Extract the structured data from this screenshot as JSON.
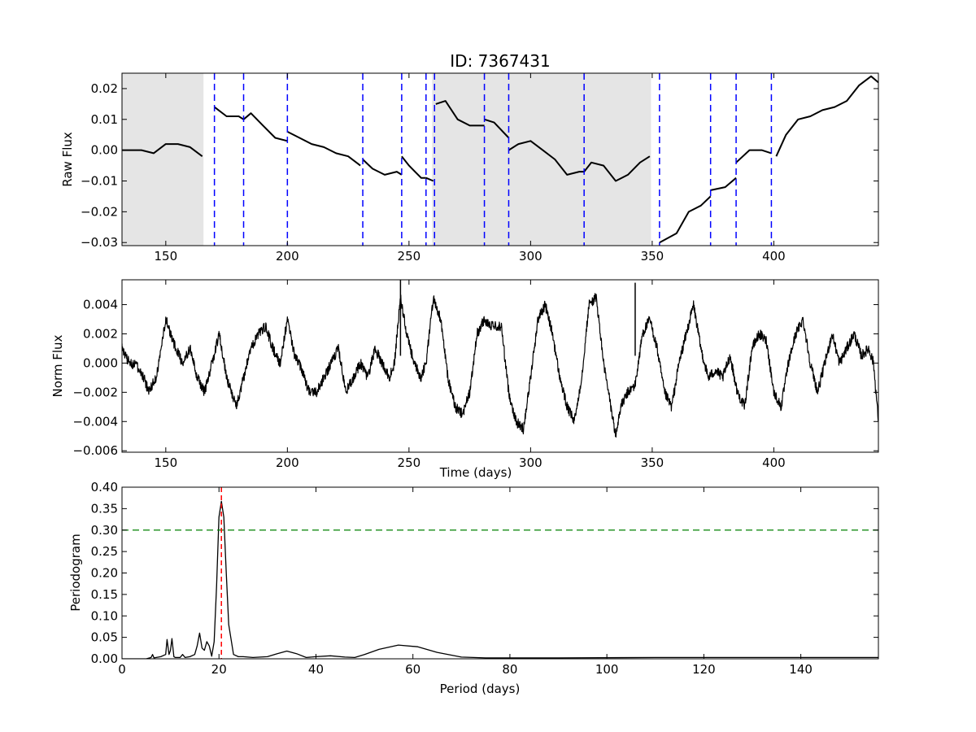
{
  "figure_title": "ID: 7367431",
  "colors": {
    "series": "#000000",
    "gap_marker": "#0000ff",
    "peak_marker": "#ff0000",
    "threshold": "#008000",
    "shade": "#e5e5e5"
  },
  "chart_data": [
    {
      "type": "line",
      "title": "ID: 7367431",
      "xlabel": "",
      "ylabel": "Raw Flux",
      "xlim": [
        132,
        443
      ],
      "ylim": [
        -0.031,
        0.025
      ],
      "xticks": [
        150,
        200,
        250,
        300,
        350,
        400
      ],
      "yticks": [
        -0.03,
        -0.02,
        -0.01,
        0.0,
        0.01,
        0.02
      ],
      "ytick_labels": [
        "−0.03",
        "−0.02",
        "−0.01",
        "0.00",
        "0.01",
        "0.02"
      ],
      "grid": false,
      "shaded_ranges": [
        [
          132,
          165.5
        ],
        [
          259.5,
          349.5
        ]
      ],
      "gap_markers": [
        170,
        182,
        200,
        231,
        247,
        257,
        260.5,
        281,
        291,
        322,
        353,
        374,
        384.5,
        399
      ],
      "series": [
        {
          "segment": 1,
          "x": [
            132,
            140,
            145,
            150,
            155,
            160,
            165
          ],
          "y": [
            0.0,
            0.0,
            -0.001,
            0.002,
            0.002,
            0.001,
            -0.002
          ]
        },
        {
          "segment": 2,
          "x": [
            170,
            175,
            180,
            182,
            185,
            190,
            195,
            200
          ],
          "y": [
            0.014,
            0.011,
            0.011,
            0.01,
            0.012,
            0.008,
            0.004,
            0.003
          ]
        },
        {
          "segment": 3,
          "x": [
            200,
            205,
            210,
            215,
            220,
            225,
            230
          ],
          "y": [
            0.006,
            0.004,
            0.002,
            0.001,
            -0.001,
            -0.002,
            -0.005
          ]
        },
        {
          "segment": 4,
          "x": [
            231,
            235,
            240,
            245,
            247
          ],
          "y": [
            -0.003,
            -0.006,
            -0.008,
            -0.007,
            -0.008
          ]
        },
        {
          "segment": 5,
          "x": [
            247,
            250,
            255,
            257
          ],
          "y": [
            -0.002,
            -0.005,
            -0.009,
            -0.009
          ]
        },
        {
          "segment": 6,
          "x": [
            257,
            260
          ],
          "y": [
            -0.009,
            -0.01
          ]
        },
        {
          "segment": 7,
          "x": [
            261,
            265,
            270,
            275,
            281
          ],
          "y": [
            0.015,
            0.016,
            0.01,
            0.008,
            0.008
          ]
        },
        {
          "segment": 8,
          "x": [
            281,
            285,
            291
          ],
          "y": [
            0.01,
            0.009,
            0.004
          ]
        },
        {
          "segment": 9,
          "x": [
            291,
            295,
            300,
            305,
            310,
            315,
            320,
            322
          ],
          "y": [
            0.0,
            0.002,
            0.003,
            0.0,
            -0.003,
            -0.008,
            -0.007,
            -0.007
          ]
        },
        {
          "segment": 10,
          "x": [
            322,
            325,
            330,
            335,
            340,
            345,
            349
          ],
          "y": [
            -0.007,
            -0.004,
            -0.005,
            -0.01,
            -0.008,
            -0.004,
            -0.002
          ]
        },
        {
          "segment": 11,
          "x": [
            353,
            360,
            365,
            370,
            374
          ],
          "y": [
            -0.03,
            -0.027,
            -0.02,
            -0.018,
            -0.015
          ]
        },
        {
          "segment": 12,
          "x": [
            374,
            380,
            384.5
          ],
          "y": [
            -0.013,
            -0.012,
            -0.009
          ]
        },
        {
          "segment": 13,
          "x": [
            384.5,
            390,
            395,
            399
          ],
          "y": [
            -0.004,
            0.0,
            0.0,
            -0.001
          ]
        },
        {
          "segment": 14,
          "x": [
            401,
            405,
            410,
            415,
            420,
            425,
            430,
            435,
            440,
            443
          ],
          "y": [
            -0.002,
            0.005,
            0.01,
            0.011,
            0.013,
            0.014,
            0.016,
            0.021,
            0.024,
            0.022
          ]
        }
      ]
    },
    {
      "type": "line",
      "title": "",
      "xlabel": "Time (days)",
      "ylabel": "Norm Flux",
      "xlim": [
        132,
        443
      ],
      "ylim": [
        -0.0061,
        0.0057
      ],
      "xticks": [
        150,
        200,
        250,
        300,
        350,
        400
      ],
      "yticks": [
        -0.006,
        -0.004,
        -0.002,
        0.0,
        0.002,
        0.004
      ],
      "ytick_labels": [
        "−0.006",
        "−0.004",
        "−0.002",
        "0.000",
        "0.002",
        "0.004"
      ],
      "grid": false,
      "noise_amplitude": 0.00035,
      "spikes": [
        [
          246.5,
          0.0057
        ],
        [
          343,
          0.0055
        ]
      ],
      "series": [
        {
          "x": [
            132,
            135,
            138,
            141,
            143,
            146,
            150,
            154,
            157,
            160,
            163,
            166,
            169,
            172,
            175,
            179,
            182,
            185,
            188,
            191,
            194,
            197,
            200,
            203,
            206,
            209,
            212,
            215,
            218,
            221,
            224,
            227,
            230,
            233,
            236,
            239,
            242,
            244,
            246.5,
            249,
            252,
            255,
            257,
            260,
            263,
            266,
            269,
            272,
            275,
            278,
            281,
            284,
            288,
            291,
            294,
            297,
            300,
            303,
            306,
            309,
            312,
            315,
            318,
            321,
            324,
            327,
            330,
            333,
            335,
            337,
            340,
            343,
            346,
            349,
            352,
            355,
            358,
            361,
            364,
            367,
            370,
            373,
            376,
            379,
            382,
            385,
            388,
            391,
            394,
            397,
            400,
            403,
            406,
            409,
            412,
            415,
            418,
            421,
            424,
            427,
            430,
            433,
            436,
            439,
            441,
            443
          ],
          "y": [
            0.001,
            0.0,
            -0.0002,
            -0.001,
            -0.002,
            -0.001,
            0.003,
            0.001,
            0.0,
            0.001,
            -0.001,
            -0.002,
            0.0,
            0.002,
            -0.001,
            -0.003,
            -0.001,
            0.001,
            0.002,
            0.0025,
            0.001,
            0.0,
            0.003,
            0.0005,
            -0.0005,
            -0.002,
            -0.002,
            -0.001,
            0.0,
            0.001,
            -0.002,
            -0.001,
            0.0,
            -0.001,
            0.001,
            0.0,
            -0.001,
            0.0,
            0.0045,
            0.002,
            0.0,
            -0.001,
            0.0,
            0.0045,
            0.003,
            -0.001,
            -0.003,
            -0.0035,
            -0.002,
            0.002,
            0.003,
            0.0025,
            0.0025,
            -0.002,
            -0.004,
            -0.0045,
            -0.001,
            0.003,
            0.004,
            0.002,
            -0.001,
            -0.003,
            -0.004,
            -0.001,
            0.004,
            0.0045,
            0.0,
            -0.003,
            -0.005,
            -0.003,
            -0.002,
            -0.0015,
            0.002,
            0.003,
            0.001,
            -0.002,
            -0.003,
            0.0,
            0.002,
            0.004,
            0.001,
            -0.001,
            -0.0005,
            -0.001,
            0.0005,
            -0.002,
            -0.003,
            0.001,
            0.002,
            0.0015,
            -0.002,
            -0.003,
            0.0,
            0.002,
            0.003,
            0.0,
            -0.002,
            0.0,
            0.002,
            0.0,
            0.001,
            0.002,
            0.0005,
            0.001,
            0.0,
            -0.004
          ]
        }
      ]
    },
    {
      "type": "line",
      "title": "",
      "xlabel": "Period (days)",
      "ylabel": "Periodogram",
      "xlim": [
        0,
        156
      ],
      "ylim": [
        0.0,
        0.4
      ],
      "xticks": [
        0,
        20,
        40,
        60,
        80,
        100,
        120,
        140
      ],
      "yticks": [
        0.0,
        0.05,
        0.1,
        0.15,
        0.2,
        0.25,
        0.3,
        0.35,
        0.4
      ],
      "ytick_labels": [
        "0.00",
        "0.05",
        "0.10",
        "0.15",
        "0.20",
        "0.25",
        "0.30",
        "0.35",
        "0.40"
      ],
      "grid": false,
      "peak_period": 20.5,
      "threshold": 0.3,
      "series": [
        {
          "x": [
            0,
            5,
            6,
            6.3,
            6.6,
            8,
            9,
            9.3,
            9.7,
            10,
            10.3,
            10.7,
            11,
            12,
            12.5,
            13,
            14,
            15,
            15.5,
            16,
            16.5,
            17,
            17.5,
            18,
            18.5,
            19,
            19.5,
            20,
            20.5,
            21,
            21.5,
            22,
            23,
            24,
            25,
            27,
            30,
            32,
            34,
            36,
            38,
            40,
            43,
            46,
            48,
            50,
            53,
            57,
            61,
            65,
            70,
            75,
            80,
            90,
            110,
            130,
            156
          ],
          "y": [
            0.0,
            0.0,
            0.003,
            0.01,
            0.002,
            0.005,
            0.01,
            0.045,
            0.01,
            0.02,
            0.047,
            0.005,
            0.003,
            0.003,
            0.01,
            0.003,
            0.005,
            0.01,
            0.03,
            0.06,
            0.025,
            0.02,
            0.04,
            0.03,
            0.006,
            0.04,
            0.17,
            0.33,
            0.367,
            0.33,
            0.2,
            0.08,
            0.01,
            0.005,
            0.005,
            0.003,
            0.005,
            0.012,
            0.018,
            0.012,
            0.003,
            0.005,
            0.007,
            0.004,
            0.003,
            0.01,
            0.022,
            0.032,
            0.028,
            0.015,
            0.004,
            0.002,
            0.002,
            0.002,
            0.003,
            0.003,
            0.003
          ]
        }
      ]
    }
  ]
}
